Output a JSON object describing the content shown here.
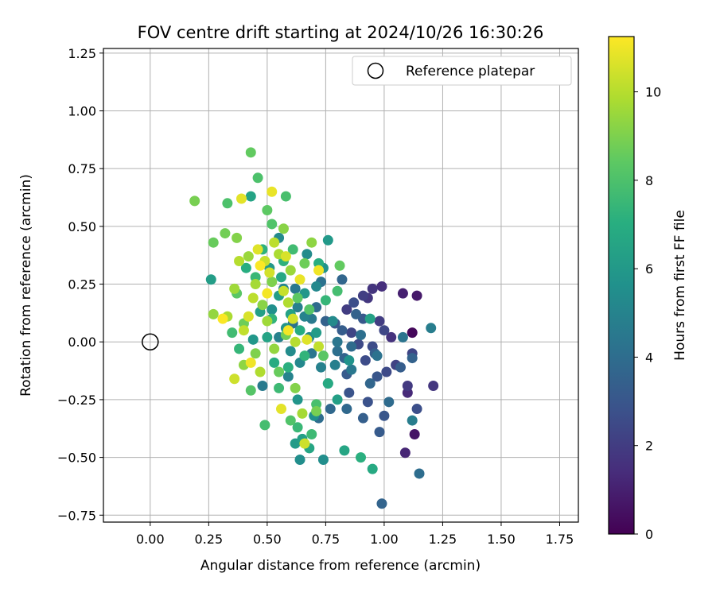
{
  "chart_data": {
    "type": "scatter",
    "title": "FOV centre drift starting at 2024/10/26 16:30:26",
    "xlabel": "Angular distance from reference (arcmin)",
    "ylabel": "Rotation from reference (arcmin)",
    "xlim": [
      -0.2,
      1.83
    ],
    "ylim": [
      -0.78,
      1.27
    ],
    "xticks": [
      0.0,
      0.25,
      0.5,
      0.75,
      1.0,
      1.25,
      1.5,
      1.75
    ],
    "xtick_labels": [
      "0.00",
      "0.25",
      "0.50",
      "0.75",
      "1.00",
      "1.25",
      "1.50",
      "1.75"
    ],
    "yticks": [
      -0.75,
      -0.5,
      -0.25,
      0.0,
      0.25,
      0.5,
      0.75,
      1.0,
      1.25
    ],
    "ytick_labels": [
      "−0.75",
      "−0.50",
      "−0.25",
      "0.00",
      "0.25",
      "0.50",
      "0.75",
      "1.00",
      "1.25"
    ],
    "grid": true,
    "legend": {
      "placement": "upper right",
      "entries": [
        "Reference platepar"
      ]
    },
    "reference_point": {
      "label": "Reference platepar",
      "x": 0.0,
      "y": 0.0
    },
    "colorbar": {
      "label": "Hours from first FF file",
      "colormap": "viridis",
      "range": [
        0,
        11.25
      ],
      "ticks": [
        0,
        2,
        4,
        6,
        8,
        10
      ],
      "tick_labels": [
        "0",
        "2",
        "4",
        "6",
        "8",
        "10"
      ]
    },
    "series": [
      {
        "points": [
          {
            "x": 1.12,
            "y": 0.04,
            "h": 0.2
          },
          {
            "x": 1.13,
            "y": -0.4,
            "h": 0.6
          },
          {
            "x": 1.14,
            "y": 0.2,
            "h": 0.8
          },
          {
            "x": 1.08,
            "y": 0.21,
            "h": 1.0
          },
          {
            "x": 1.09,
            "y": -0.48,
            "h": 1.2
          },
          {
            "x": 1.1,
            "y": -0.22,
            "h": 1.3
          },
          {
            "x": 0.99,
            "y": 0.24,
            "h": 1.5
          },
          {
            "x": 1.03,
            "y": 0.02,
            "h": 1.6
          },
          {
            "x": 0.95,
            "y": 0.23,
            "h": 1.7
          },
          {
            "x": 0.93,
            "y": 0.19,
            "h": 1.8
          },
          {
            "x": 1.1,
            "y": -0.19,
            "h": 1.9
          },
          {
            "x": 1.21,
            "y": -0.19,
            "h": 1.8
          },
          {
            "x": 0.84,
            "y": 0.14,
            "h": 2.0
          },
          {
            "x": 0.98,
            "y": 0.09,
            "h": 2.0
          },
          {
            "x": 0.91,
            "y": 0.2,
            "h": 2.1
          },
          {
            "x": 1.05,
            "y": -0.1,
            "h": 2.2
          },
          {
            "x": 1.12,
            "y": -0.05,
            "h": 2.3
          },
          {
            "x": 0.86,
            "y": 0.04,
            "h": 2.3
          },
          {
            "x": 1.0,
            "y": 0.05,
            "h": 2.4
          },
          {
            "x": 0.89,
            "y": -0.01,
            "h": 2.5
          },
          {
            "x": 1.01,
            "y": -0.13,
            "h": 2.5
          },
          {
            "x": 0.92,
            "y": -0.08,
            "h": 2.6
          },
          {
            "x": 0.95,
            "y": -0.02,
            "h": 2.6
          },
          {
            "x": 1.14,
            "y": -0.29,
            "h": 2.7
          },
          {
            "x": 0.87,
            "y": 0.17,
            "h": 2.7
          },
          {
            "x": 0.93,
            "y": -0.26,
            "h": 2.8
          },
          {
            "x": 0.85,
            "y": -0.22,
            "h": 2.9
          },
          {
            "x": 0.97,
            "y": -0.15,
            "h": 3.0
          },
          {
            "x": 1.0,
            "y": -0.32,
            "h": 3.0
          },
          {
            "x": 0.79,
            "y": 0.08,
            "h": 3.1
          },
          {
            "x": 0.91,
            "y": 0.1,
            "h": 3.1
          },
          {
            "x": 0.98,
            "y": -0.39,
            "h": 3.2
          },
          {
            "x": 0.84,
            "y": -0.14,
            "h": 3.2
          },
          {
            "x": 1.07,
            "y": -0.11,
            "h": 3.3
          },
          {
            "x": 0.82,
            "y": 0.05,
            "h": 3.3
          },
          {
            "x": 0.91,
            "y": -0.33,
            "h": 3.4
          },
          {
            "x": 0.96,
            "y": -0.05,
            "h": 3.4
          },
          {
            "x": 0.75,
            "y": 0.09,
            "h": 3.5
          },
          {
            "x": 1.12,
            "y": -0.07,
            "h": 3.5
          },
          {
            "x": 0.88,
            "y": 0.12,
            "h": 3.5
          },
          {
            "x": 0.83,
            "y": -0.07,
            "h": 3.6
          },
          {
            "x": 0.99,
            "y": -0.7,
            "h": 3.6
          },
          {
            "x": 0.82,
            "y": 0.27,
            "h": 3.7
          },
          {
            "x": 0.94,
            "y": -0.18,
            "h": 3.7
          },
          {
            "x": 0.77,
            "y": -0.29,
            "h": 3.8
          },
          {
            "x": 0.84,
            "y": -0.29,
            "h": 3.8
          },
          {
            "x": 0.71,
            "y": 0.15,
            "h": 3.9
          },
          {
            "x": 1.02,
            "y": -0.26,
            "h": 3.9
          },
          {
            "x": 0.86,
            "y": -0.02,
            "h": 3.9
          },
          {
            "x": 0.72,
            "y": -0.33,
            "h": 4.0
          },
          {
            "x": 1.15,
            "y": -0.57,
            "h": 4.0
          },
          {
            "x": 0.8,
            "y": -0.04,
            "h": 4.1
          },
          {
            "x": 0.9,
            "y": 0.03,
            "h": 4.1
          },
          {
            "x": 0.61,
            "y": 0.08,
            "h": 4.2
          },
          {
            "x": 0.73,
            "y": 0.26,
            "h": 4.2
          },
          {
            "x": 0.97,
            "y": -0.06,
            "h": 4.2
          },
          {
            "x": 1.08,
            "y": 0.02,
            "h": 4.3
          },
          {
            "x": 0.69,
            "y": -0.05,
            "h": 4.4
          },
          {
            "x": 0.8,
            "y": 0.0,
            "h": 4.4
          },
          {
            "x": 0.62,
            "y": 0.23,
            "h": 4.5
          },
          {
            "x": 0.86,
            "y": -0.12,
            "h": 4.5
          },
          {
            "x": 0.48,
            "y": -0.19,
            "h": 4.6
          },
          {
            "x": 0.69,
            "y": 0.1,
            "h": 4.6
          },
          {
            "x": 1.12,
            "y": -0.34,
            "h": 4.7
          },
          {
            "x": 1.2,
            "y": 0.06,
            "h": 4.7
          },
          {
            "x": 0.63,
            "y": 0.15,
            "h": 4.8
          },
          {
            "x": 0.79,
            "y": -0.1,
            "h": 4.8
          },
          {
            "x": 0.55,
            "y": 0.02,
            "h": 4.9
          },
          {
            "x": 0.73,
            "y": -0.11,
            "h": 4.9
          },
          {
            "x": 0.59,
            "y": -0.15,
            "h": 5.0
          },
          {
            "x": 0.66,
            "y": 0.11,
            "h": 5.0
          },
          {
            "x": 0.57,
            "y": 0.23,
            "h": 5.1
          },
          {
            "x": 0.76,
            "y": -0.18,
            "h": 5.1
          },
          {
            "x": 0.68,
            "y": 0.02,
            "h": 5.2
          },
          {
            "x": 0.64,
            "y": -0.09,
            "h": 5.2
          },
          {
            "x": 0.71,
            "y": 0.24,
            "h": 5.2
          },
          {
            "x": 0.78,
            "y": 0.09,
            "h": 5.3
          },
          {
            "x": 0.55,
            "y": 0.45,
            "h": 5.3
          },
          {
            "x": 0.67,
            "y": 0.38,
            "h": 5.4
          },
          {
            "x": 0.6,
            "y": -0.04,
            "h": 5.4
          },
          {
            "x": 0.74,
            "y": -0.51,
            "h": 5.5
          },
          {
            "x": 0.64,
            "y": -0.51,
            "h": 5.5
          },
          {
            "x": 0.52,
            "y": 0.14,
            "h": 5.6
          },
          {
            "x": 0.7,
            "y": -0.32,
            "h": 5.6
          },
          {
            "x": 0.74,
            "y": 0.32,
            "h": 5.7
          },
          {
            "x": 0.85,
            "y": -0.08,
            "h": 5.7
          },
          {
            "x": 0.63,
            "y": -0.25,
            "h": 5.8
          },
          {
            "x": 0.58,
            "y": 0.06,
            "h": 5.8
          },
          {
            "x": 0.44,
            "y": 0.01,
            "h": 5.9
          },
          {
            "x": 0.66,
            "y": 0.21,
            "h": 5.9
          },
          {
            "x": 0.76,
            "y": 0.44,
            "h": 6.0
          },
          {
            "x": 0.51,
            "y": 0.32,
            "h": 6.0
          },
          {
            "x": 0.62,
            "y": -0.44,
            "h": 6.1
          },
          {
            "x": 0.71,
            "y": 0.04,
            "h": 6.1
          },
          {
            "x": 0.26,
            "y": 0.27,
            "h": 6.2
          },
          {
            "x": 0.55,
            "y": 0.2,
            "h": 6.2
          },
          {
            "x": 0.8,
            "y": -0.25,
            "h": 6.3
          },
          {
            "x": 0.47,
            "y": 0.13,
            "h": 6.3
          },
          {
            "x": 0.65,
            "y": -0.42,
            "h": 6.3
          },
          {
            "x": 0.6,
            "y": 0.12,
            "h": 6.4
          },
          {
            "x": 0.94,
            "y": 0.1,
            "h": 6.4
          },
          {
            "x": 0.43,
            "y": 0.63,
            "h": 6.5
          },
          {
            "x": 0.5,
            "y": 0.02,
            "h": 6.5
          },
          {
            "x": 0.83,
            "y": -0.47,
            "h": 6.6
          },
          {
            "x": 0.68,
            "y": -0.46,
            "h": 6.6
          },
          {
            "x": 0.56,
            "y": 0.28,
            "h": 6.7
          },
          {
            "x": 0.76,
            "y": -0.18,
            "h": 6.8
          },
          {
            "x": 0.95,
            "y": -0.55,
            "h": 6.8
          },
          {
            "x": 0.64,
            "y": 0.05,
            "h": 6.9
          },
          {
            "x": 0.53,
            "y": -0.09,
            "h": 6.9
          },
          {
            "x": 0.72,
            "y": 0.34,
            "h": 7.0
          },
          {
            "x": 0.41,
            "y": 0.32,
            "h": 7.0
          },
          {
            "x": 0.59,
            "y": -0.11,
            "h": 7.1
          },
          {
            "x": 0.9,
            "y": -0.5,
            "h": 7.1
          },
          {
            "x": 0.48,
            "y": 0.4,
            "h": 7.2
          },
          {
            "x": 0.57,
            "y": 0.35,
            "h": 7.2
          },
          {
            "x": 0.66,
            "y": -0.06,
            "h": 7.3
          },
          {
            "x": 0.52,
            "y": 0.1,
            "h": 7.3
          },
          {
            "x": 0.75,
            "y": 0.18,
            "h": 7.4
          },
          {
            "x": 0.38,
            "y": -0.03,
            "h": 7.4
          },
          {
            "x": 0.63,
            "y": -0.37,
            "h": 7.5
          },
          {
            "x": 0.45,
            "y": 0.28,
            "h": 7.5
          },
          {
            "x": 0.69,
            "y": -0.4,
            "h": 7.6
          },
          {
            "x": 0.55,
            "y": -0.2,
            "h": 7.6
          },
          {
            "x": 0.61,
            "y": 0.4,
            "h": 7.7
          },
          {
            "x": 0.35,
            "y": 0.04,
            "h": 7.7
          },
          {
            "x": 0.8,
            "y": 0.22,
            "h": 7.8
          },
          {
            "x": 0.49,
            "y": -0.36,
            "h": 7.8
          },
          {
            "x": 0.58,
            "y": 0.63,
            "h": 7.9
          },
          {
            "x": 0.71,
            "y": -0.27,
            "h": 7.9
          },
          {
            "x": 0.33,
            "y": 0.6,
            "h": 8.0
          },
          {
            "x": 0.46,
            "y": 0.71,
            "h": 8.0
          },
          {
            "x": 0.6,
            "y": -0.34,
            "h": 8.1
          },
          {
            "x": 0.52,
            "y": 0.51,
            "h": 8.1
          },
          {
            "x": 0.43,
            "y": -0.21,
            "h": 8.2
          },
          {
            "x": 0.68,
            "y": 0.14,
            "h": 8.2
          },
          {
            "x": 0.37,
            "y": 0.21,
            "h": 8.3
          },
          {
            "x": 0.74,
            "y": -0.06,
            "h": 8.3
          },
          {
            "x": 0.5,
            "y": 0.57,
            "h": 8.4
          },
          {
            "x": 0.63,
            "y": 0.19,
            "h": 8.4
          },
          {
            "x": 0.43,
            "y": 0.82,
            "h": 8.5
          },
          {
            "x": 0.81,
            "y": 0.33,
            "h": 8.5
          },
          {
            "x": 0.27,
            "y": 0.43,
            "h": 8.6
          },
          {
            "x": 0.55,
            "y": -0.13,
            "h": 8.6
          },
          {
            "x": 0.4,
            "y": 0.08,
            "h": 8.7
          },
          {
            "x": 0.66,
            "y": 0.34,
            "h": 8.7
          },
          {
            "x": 0.32,
            "y": 0.47,
            "h": 8.8
          },
          {
            "x": 0.58,
            "y": 0.03,
            "h": 8.8
          },
          {
            "x": 0.19,
            "y": 0.61,
            "h": 8.9
          },
          {
            "x": 0.71,
            "y": -0.3,
            "h": 8.9
          },
          {
            "x": 0.45,
            "y": -0.05,
            "h": 9.0
          },
          {
            "x": 0.52,
            "y": 0.26,
            "h": 9.0
          },
          {
            "x": 0.37,
            "y": 0.45,
            "h": 9.1
          },
          {
            "x": 0.62,
            "y": -0.2,
            "h": 9.1
          },
          {
            "x": 0.48,
            "y": 0.16,
            "h": 9.2
          },
          {
            "x": 0.57,
            "y": 0.49,
            "h": 9.2
          },
          {
            "x": 0.4,
            "y": -0.1,
            "h": 9.3
          },
          {
            "x": 0.69,
            "y": 0.43,
            "h": 9.3
          },
          {
            "x": 0.27,
            "y": 0.12,
            "h": 9.4
          },
          {
            "x": 0.53,
            "y": -0.03,
            "h": 9.4
          },
          {
            "x": 0.42,
            "y": 0.37,
            "h": 9.5
          },
          {
            "x": 0.6,
            "y": 0.31,
            "h": 9.5
          },
          {
            "x": 0.36,
            "y": 0.23,
            "h": 9.6
          },
          {
            "x": 0.5,
            "y": 0.09,
            "h": 9.6
          },
          {
            "x": 0.65,
            "y": -0.31,
            "h": 9.7
          },
          {
            "x": 0.45,
            "y": 0.25,
            "h": 9.7
          },
          {
            "x": 0.55,
            "y": 0.38,
            "h": 9.8
          },
          {
            "x": 0.33,
            "y": 0.11,
            "h": 9.8
          },
          {
            "x": 0.59,
            "y": 0.17,
            "h": 9.9
          },
          {
            "x": 0.47,
            "y": -0.13,
            "h": 9.9
          },
          {
            "x": 0.38,
            "y": 0.35,
            "h": 10.0
          },
          {
            "x": 0.62,
            "y": 0.0,
            "h": 10.0
          },
          {
            "x": 0.44,
            "y": 0.19,
            "h": 10.1
          },
          {
            "x": 0.53,
            "y": 0.43,
            "h": 10.1
          },
          {
            "x": 0.72,
            "y": -0.02,
            "h": 10.2
          },
          {
            "x": 0.4,
            "y": 0.05,
            "h": 10.2
          },
          {
            "x": 0.57,
            "y": 0.22,
            "h": 10.3
          },
          {
            "x": 0.49,
            "y": 0.35,
            "h": 10.3
          },
          {
            "x": 0.66,
            "y": -0.44,
            "h": 10.4
          },
          {
            "x": 0.36,
            "y": -0.16,
            "h": 10.4
          },
          {
            "x": 0.51,
            "y": 0.3,
            "h": 10.5
          },
          {
            "x": 0.61,
            "y": 0.1,
            "h": 10.5
          },
          {
            "x": 0.42,
            "y": 0.11,
            "h": 10.6
          },
          {
            "x": 0.58,
            "y": 0.37,
            "h": 10.6
          },
          {
            "x": 0.46,
            "y": 0.4,
            "h": 10.7
          },
          {
            "x": 0.67,
            "y": 0.01,
            "h": 10.7
          },
          {
            "x": 0.39,
            "y": 0.62,
            "h": 10.8
          },
          {
            "x": 0.56,
            "y": -0.29,
            "h": 10.8
          },
          {
            "x": 0.52,
            "y": 0.65,
            "h": 10.9
          },
          {
            "x": 0.64,
            "y": 0.27,
            "h": 10.9
          },
          {
            "x": 0.43,
            "y": -0.09,
            "h": 11.0
          },
          {
            "x": 0.72,
            "y": 0.31,
            "h": 11.0
          },
          {
            "x": 0.5,
            "y": 0.21,
            "h": 11.1
          },
          {
            "x": 0.59,
            "y": 0.05,
            "h": 11.1
          },
          {
            "x": 0.31,
            "y": 0.1,
            "h": 11.2
          },
          {
            "x": 0.47,
            "y": 0.33,
            "h": 11.2
          }
        ]
      }
    ]
  }
}
